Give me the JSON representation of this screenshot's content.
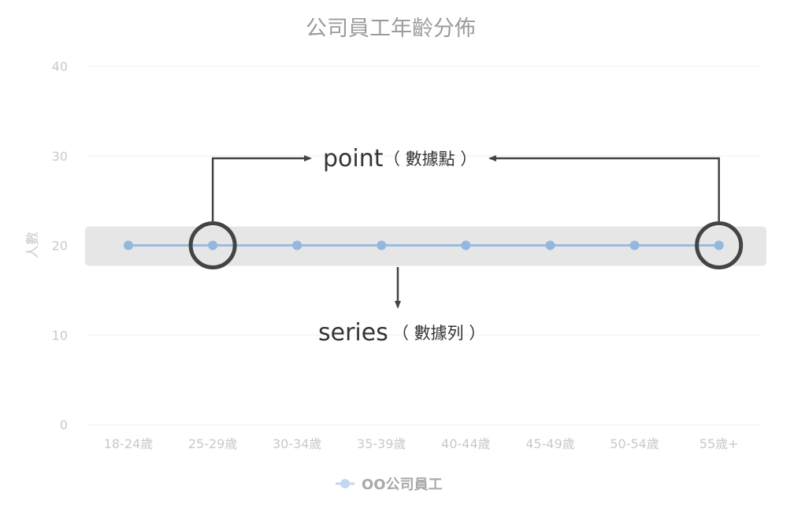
{
  "chart_data": {
    "type": "line",
    "title": "公司員工年齡分佈",
    "ylabel": "人數",
    "xlabel": "",
    "categories": [
      "18-24歲",
      "25-29歲",
      "30-34歲",
      "35-39歲",
      "40-44歲",
      "45-49歲",
      "50-54歲",
      "55歲+"
    ],
    "series": [
      {
        "name": "OO公司員工",
        "values": [
          20,
          20,
          20,
          20,
          20,
          20,
          20,
          20
        ]
      }
    ],
    "ylim": [
      0,
      40
    ],
    "yticks": [
      "0",
      "10",
      "20",
      "30",
      "40"
    ],
    "grid": true,
    "legend": "bottom",
    "annotations": [
      {
        "main": "point",
        "sub": "（ 數據點 ）",
        "target": "points 25-29歲 and 55歲+"
      },
      {
        "main": "series",
        "sub": "（ 數據列 ）",
        "target": "series line"
      }
    ]
  },
  "colors": {
    "series": "#9bbce0",
    "series_point": "#94b7de",
    "legend_marker": "#c3d8ef",
    "highlight_band": "#e6e6e6",
    "gridline": "#f0f0f0",
    "annotation": "#444444",
    "title": "#9b9b9b",
    "tick": "#c9c9c9"
  }
}
